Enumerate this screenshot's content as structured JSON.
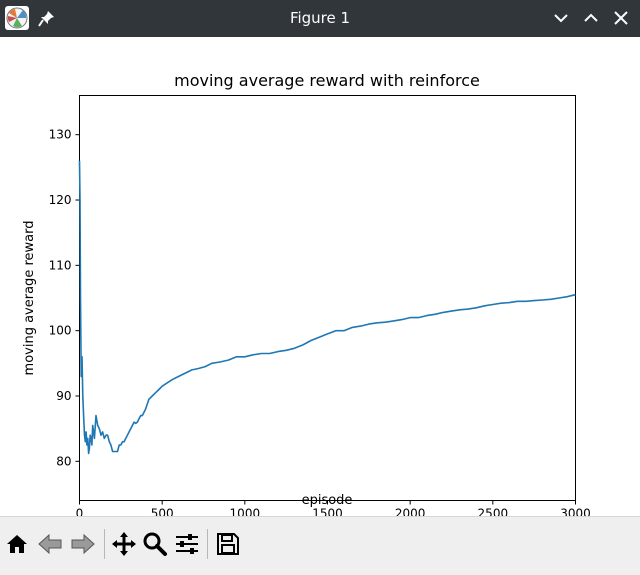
{
  "window": {
    "title": "Figure 1"
  },
  "toolbar": {
    "buttons": [
      "home-icon",
      "back-icon",
      "forward-icon",
      "pan-icon",
      "zoom-icon",
      "configure-subplots-icon",
      "save-icon"
    ]
  },
  "colors": {
    "titlebar": "#31363b",
    "line": "#1f77b4",
    "toolbar": "#efefef"
  },
  "chart_data": {
    "type": "line",
    "title": "moving average reward with reinforce",
    "xlabel": "episode",
    "ylabel": "moving average reward",
    "xlim": [
      0,
      3000
    ],
    "ylim": [
      74,
      136
    ],
    "xticks": [
      0,
      500,
      1000,
      1500,
      2000,
      2500,
      3000
    ],
    "yticks": [
      80,
      90,
      100,
      110,
      120,
      130
    ],
    "grid": false,
    "series": [
      {
        "name": "",
        "color": "#1f77b4",
        "x": [
          0,
          3,
          6,
          10,
          15,
          20,
          25,
          30,
          35,
          40,
          45,
          50,
          55,
          60,
          65,
          70,
          75,
          80,
          90,
          100,
          110,
          120,
          130,
          140,
          150,
          160,
          170,
          180,
          190,
          200,
          210,
          220,
          230,
          240,
          250,
          260,
          270,
          280,
          290,
          300,
          310,
          320,
          330,
          340,
          350,
          360,
          370,
          380,
          390,
          400,
          420,
          440,
          460,
          480,
          500,
          530,
          560,
          600,
          640,
          680,
          720,
          760,
          800,
          850,
          900,
          950,
          1000,
          1050,
          1100,
          1150,
          1200,
          1250,
          1300,
          1350,
          1400,
          1450,
          1500,
          1550,
          1600,
          1650,
          1700,
          1750,
          1800,
          1850,
          1900,
          1950,
          2000,
          2050,
          2100,
          2150,
          2200,
          2250,
          2300,
          2350,
          2400,
          2450,
          2500,
          2550,
          2600,
          2650,
          2700,
          2750,
          2800,
          2850,
          2900,
          2950,
          3000
        ],
        "values": [
          126,
          120,
          105,
          93,
          96,
          90,
          87,
          84,
          83,
          84.5,
          82.5,
          83.5,
          81.2,
          82,
          84,
          83.5,
          82.5,
          85.5,
          83.5,
          87,
          85.5,
          85,
          84,
          84.5,
          83.5,
          84,
          84,
          83,
          82.5,
          81.5,
          81.5,
          81.5,
          81.5,
          82.5,
          82.5,
          83,
          83,
          83.5,
          84,
          84.5,
          85,
          85.5,
          86,
          85.8,
          86,
          86.5,
          87,
          87,
          87.5,
          88,
          89.5,
          90,
          90.5,
          91,
          91.5,
          92,
          92.5,
          93,
          93.5,
          94,
          94.2,
          94.5,
          95,
          95.2,
          95.5,
          96,
          96,
          96.3,
          96.5,
          96.5,
          96.8,
          97,
          97.3,
          97.8,
          98.5,
          99,
          99.5,
          100,
          100,
          100.5,
          100.7,
          101,
          101.2,
          101.3,
          101.5,
          101.7,
          102,
          102,
          102.3,
          102.5,
          102.8,
          103,
          103.2,
          103.3,
          103.5,
          103.8,
          104,
          104.2,
          104.3,
          104.5,
          104.5,
          104.6,
          104.7,
          104.8,
          105,
          105.2,
          105.5
        ]
      }
    ]
  }
}
